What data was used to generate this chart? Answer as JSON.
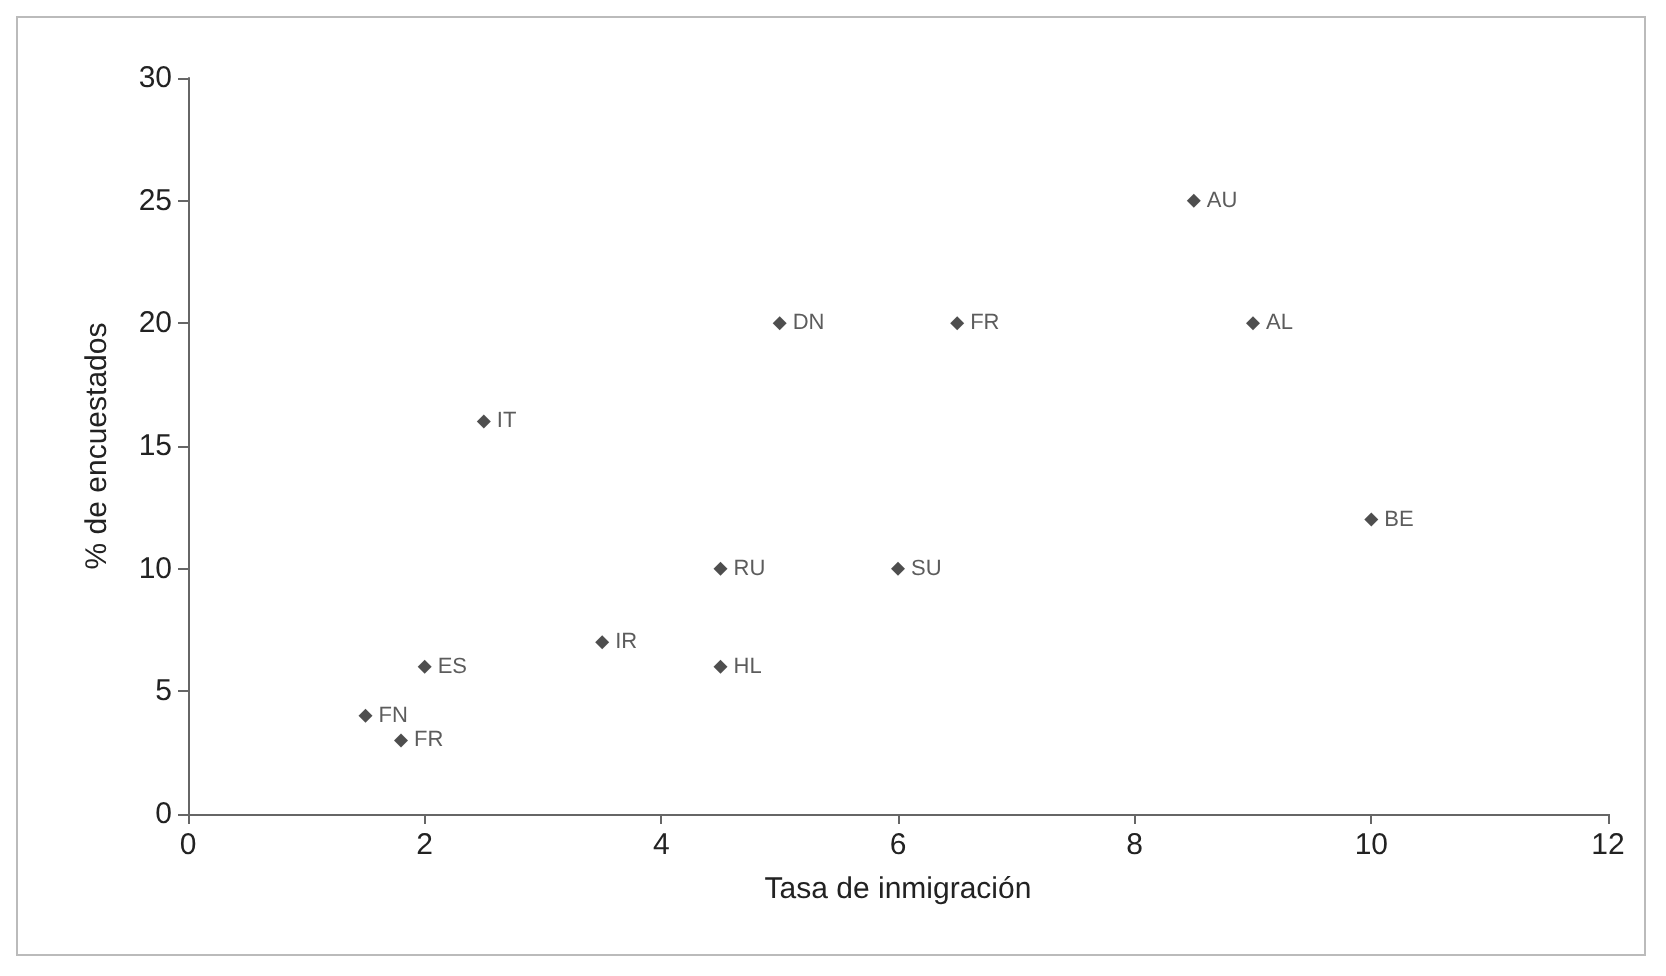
{
  "chart_data": {
    "type": "scatter",
    "xlabel": "Tasa de inmigración",
    "ylabel": "% de encuestados",
    "x": [
      1.5,
      1.8,
      2.0,
      2.5,
      3.5,
      4.5,
      4.5,
      5.0,
      6.0,
      6.5,
      8.5,
      9.0,
      10.0
    ],
    "values": [
      4,
      3,
      6,
      16,
      7,
      10,
      6,
      20,
      10,
      20,
      25,
      20,
      12
    ],
    "value_labels": [
      "FN",
      "FR",
      "ES",
      "IT",
      "IR",
      "RU",
      "HL",
      "DN",
      "SU",
      "FR",
      "AU",
      "AL",
      "BE"
    ],
    "color": "#222222",
    "marker": "diamond",
    "grid": false,
    "xlim": [
      0,
      12
    ],
    "xticks": [
      0,
      2,
      4,
      6,
      8,
      10,
      12
    ],
    "ylim": [
      0,
      30
    ],
    "yticks": [
      0,
      5,
      10,
      15,
      20,
      25,
      30
    ]
  }
}
